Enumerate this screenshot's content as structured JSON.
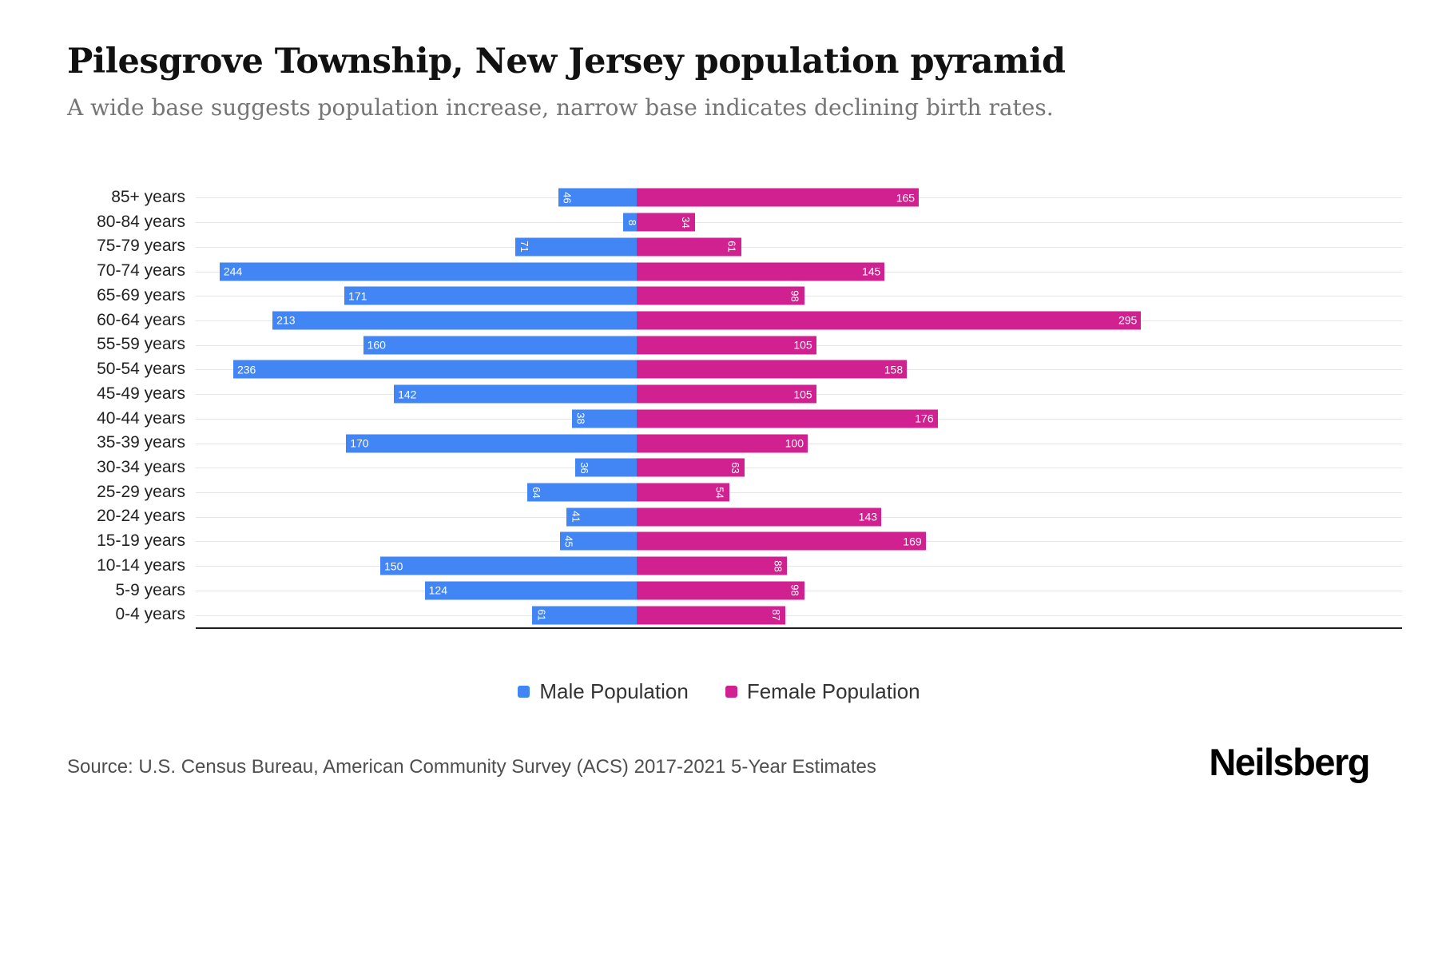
{
  "header": {
    "title": "Pilesgrove Township, New Jersey population pyramid",
    "subtitle": "A wide base suggests population increase, narrow base indicates declining birth rates."
  },
  "chart_data": {
    "type": "bar",
    "variant": "population-pyramid",
    "categories": [
      "85+ years",
      "80-84 years",
      "75-79 years",
      "70-74 years",
      "65-69 years",
      "60-64 years",
      "55-59 years",
      "50-54 years",
      "45-49 years",
      "40-44 years",
      "35-39 years",
      "30-34 years",
      "25-29 years",
      "20-24 years",
      "15-19 years",
      "10-14 years",
      "5-9 years",
      "0-4 years"
    ],
    "series": [
      {
        "name": "Male Population",
        "side": "left",
        "color": "#4285f4",
        "values": [
          46,
          8,
          71,
          244,
          171,
          213,
          160,
          236,
          142,
          38,
          170,
          36,
          64,
          41,
          45,
          150,
          124,
          61
        ]
      },
      {
        "name": "Female Population",
        "side": "right",
        "color": "#d1208f",
        "values": [
          165,
          34,
          61,
          145,
          98,
          295,
          105,
          158,
          105,
          176,
          100,
          63,
          54,
          143,
          169,
          88,
          98,
          87
        ]
      }
    ],
    "value_label_rotate_below": 100,
    "grid": "horizontal-light",
    "legend_position": "bottom-center"
  },
  "footer": {
    "source": "Source: U.S. Census Bureau, American Community Survey (ACS) 2017-2021 5-Year Estimates",
    "brand": "Neilsberg"
  }
}
